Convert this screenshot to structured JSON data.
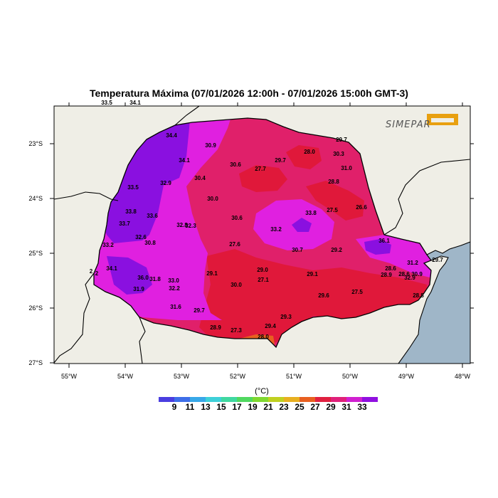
{
  "title": "Temperatura Máxima (07/01/2026 12:00h - 07/01/2026 15:00h GMT-3)",
  "logo": {
    "text": "SIMEPAR",
    "color": "#e8a010"
  },
  "axes": {
    "x_ticks": [
      "55°W",
      "54°W",
      "53°W",
      "52°W",
      "51°W",
      "50°W",
      "49°W",
      "48°W"
    ],
    "y_ticks": [
      "23°S",
      "24°S",
      "25°S",
      "26°S",
      "27°S"
    ]
  },
  "colorbar": {
    "unit": "(°C)",
    "labels": [
      "9",
      "11",
      "13",
      "15",
      "17",
      "19",
      "21",
      "23",
      "25",
      "27",
      "29",
      "31",
      "33"
    ],
    "colors": [
      "#4a3ee0",
      "#3e6ee8",
      "#38a8e8",
      "#3ed0d8",
      "#40d8a0",
      "#50d860",
      "#80d830",
      "#c0d020",
      "#e8b020",
      "#e86020",
      "#e02040",
      "#e0207a",
      "#d020d0",
      "#9010e0"
    ]
  },
  "colors": {
    "land_outside": "#efeee6",
    "ocean": "#9fb6c8",
    "hot": "#e0183a",
    "warm": "#e0206a",
    "mid": "#d81ea0",
    "magenta": "#e020e0",
    "violet": "#8a10e0"
  },
  "stations": [
    {
      "v": "33.5"
    },
    {
      "v": "34.1"
    },
    {
      "v": "34.4"
    },
    {
      "v": "30.9"
    },
    {
      "v": "34.1"
    },
    {
      "v": "32.9"
    },
    {
      "v": "33.5"
    },
    {
      "v": "30.4"
    },
    {
      "v": "30.6"
    },
    {
      "v": "27.7"
    },
    {
      "v": "29.7"
    },
    {
      "v": "28.0"
    },
    {
      "v": "30.3"
    },
    {
      "v": "29.7"
    },
    {
      "v": "31.0"
    },
    {
      "v": "33.8"
    },
    {
      "v": "33.6"
    },
    {
      "v": "33.7"
    },
    {
      "v": "30.0"
    },
    {
      "v": "32.8"
    },
    {
      "v": "32.3"
    },
    {
      "v": "30.6"
    },
    {
      "v": "33.2"
    },
    {
      "v": "33.8"
    },
    {
      "v": "27.5"
    },
    {
      "v": "28.8"
    },
    {
      "v": "26.6"
    },
    {
      "v": "32.6"
    },
    {
      "v": "30.8"
    },
    {
      "v": "33.2"
    },
    {
      "v": "27.6"
    },
    {
      "v": "30.7"
    },
    {
      "v": "29.2"
    },
    {
      "v": "36.1"
    },
    {
      "v": "34.1"
    },
    {
      "v": "36.0"
    },
    {
      "v": "31.8"
    },
    {
      "v": "33.0"
    },
    {
      "v": "29.1"
    },
    {
      "v": "29.0"
    },
    {
      "v": "29.1"
    },
    {
      "v": "29.7"
    },
    {
      "v": "31.2"
    },
    {
      "v": "31.9"
    },
    {
      "v": "32.2"
    },
    {
      "v": "30.0"
    },
    {
      "v": "27.1"
    },
    {
      "v": "28.6"
    },
    {
      "v": "28.9"
    },
    {
      "v": "28.6"
    },
    {
      "v": "30.9"
    },
    {
      "v": "32.9"
    },
    {
      "v": "29.6"
    },
    {
      "v": "27.5"
    },
    {
      "v": "31.6"
    },
    {
      "v": "29.7"
    },
    {
      "v": "28.8"
    },
    {
      "v": "29.3"
    },
    {
      "v": "28.9"
    },
    {
      "v": "27.3"
    },
    {
      "v": "29.4"
    },
    {
      "v": "28.0"
    },
    {
      "v": "2"
    },
    {
      "v": "2"
    }
  ]
}
